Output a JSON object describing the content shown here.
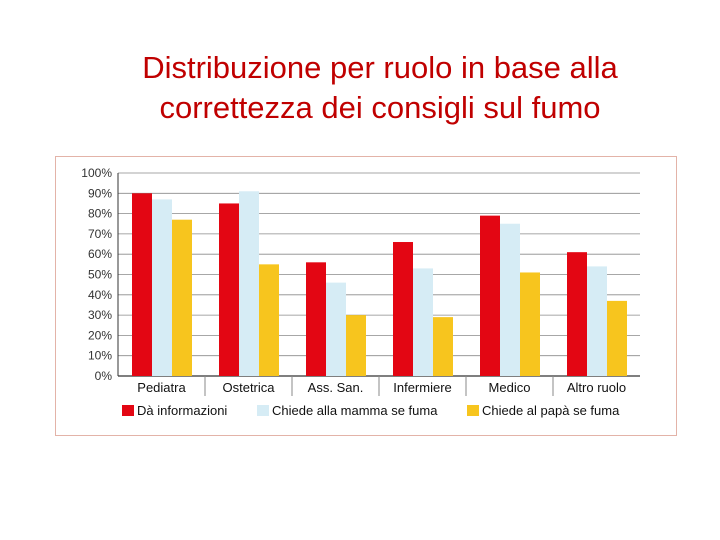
{
  "title_lines": [
    "Distribuzione per ruolo in base alla",
    "correttezza dei consigli sul fumo"
  ],
  "chart_data": {
    "type": "bar",
    "categories": [
      "Pediatra",
      "Ostetrica",
      "Ass. San.",
      "Infermiere",
      "Medico",
      "Altro ruolo"
    ],
    "series": [
      {
        "name": "Dà informazioni",
        "color": "#e30613",
        "values": [
          90,
          85,
          56,
          66,
          79,
          61
        ]
      },
      {
        "name": "Chiede alla mamma se fuma",
        "color": "#d6ecf5",
        "values": [
          87,
          91,
          46,
          53,
          75,
          54
        ]
      },
      {
        "name": "Chiede al papà se fuma",
        "color": "#f7c51e",
        "values": [
          77,
          55,
          30,
          29,
          51,
          37
        ]
      }
    ],
    "ylim": [
      0,
      100
    ],
    "yticks": [
      "0%",
      "10%",
      "20%",
      "30%",
      "40%",
      "50%",
      "60%",
      "70%",
      "80%",
      "90%",
      "100%"
    ],
    "grid": true,
    "legend_position": "bottom",
    "xlabel": "",
    "ylabel": ""
  }
}
